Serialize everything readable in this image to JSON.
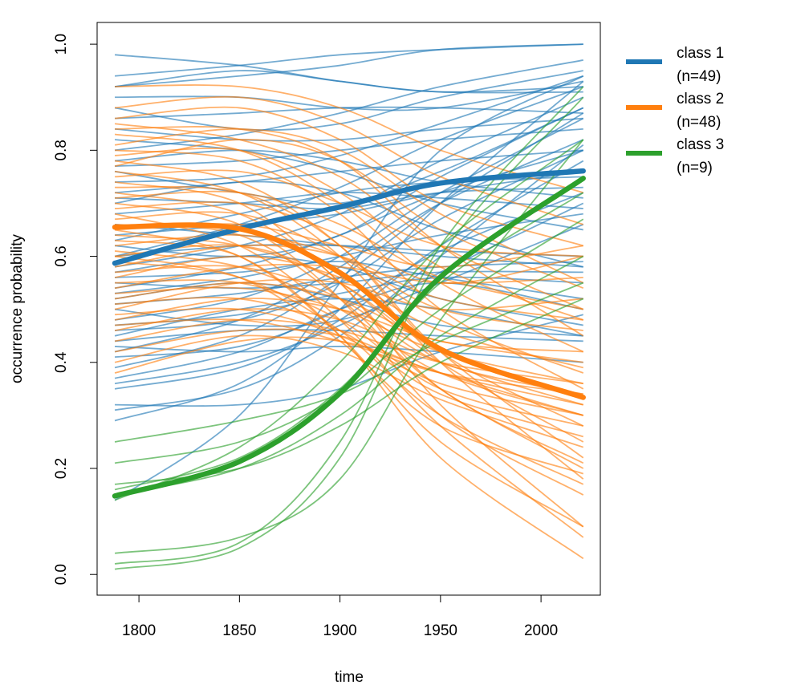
{
  "chart_data": {
    "type": "line",
    "x_label": "time",
    "y_label": "occurrence probability",
    "x": [
      1788,
      1850,
      1900,
      1950,
      2021
    ],
    "xlim": [
      1779.2,
      2029.5
    ],
    "xticks": [
      1800,
      1850,
      1900,
      1950,
      2000
    ],
    "ylim": [
      -0.039,
      1.041
    ],
    "yticks": [
      {
        "value": 0,
        "label": "0.0"
      },
      0.2,
      0.4,
      0.6,
      0.8,
      {
        "value": 1,
        "label": "1.0"
      }
    ],
    "legend": "right",
    "series": [
      {
        "name": "class 1",
        "n_label": "(n=49)",
        "color": "#1f77b4",
        "values": [
          0.587,
          0.652,
          0.693,
          0.738,
          0.761
        ],
        "members": [
          [
            0.98,
            0.96,
            0.93,
            0.91,
            0.91
          ],
          [
            0.94,
            0.96,
            0.98,
            0.99,
            1.0
          ],
          [
            0.92,
            0.94,
            0.96,
            0.99,
            1.0
          ],
          [
            0.92,
            0.95,
            0.93,
            0.91,
            0.92
          ],
          [
            0.88,
            0.84,
            0.85,
            0.9,
            0.95
          ],
          [
            0.9,
            0.9,
            0.88,
            0.88,
            0.93
          ],
          [
            0.84,
            0.82,
            0.82,
            0.84,
            0.86
          ],
          [
            0.8,
            0.83,
            0.87,
            0.92,
            0.97
          ],
          [
            0.78,
            0.8,
            0.78,
            0.74,
            0.71
          ],
          [
            0.76,
            0.72,
            0.7,
            0.76,
            0.88
          ],
          [
            0.74,
            0.75,
            0.79,
            0.85,
            0.94
          ],
          [
            0.72,
            0.74,
            0.76,
            0.78,
            0.8
          ],
          [
            0.71,
            0.7,
            0.69,
            0.72,
            0.73
          ],
          [
            0.68,
            0.7,
            0.72,
            0.71,
            0.69
          ],
          [
            0.66,
            0.64,
            0.62,
            0.6,
            0.58
          ],
          [
            0.64,
            0.66,
            0.68,
            0.72,
            0.76
          ],
          [
            0.62,
            0.6,
            0.64,
            0.75,
            0.88
          ],
          [
            0.6,
            0.62,
            0.62,
            0.61,
            0.6
          ],
          [
            0.58,
            0.62,
            0.68,
            0.78,
            0.9
          ],
          [
            0.56,
            0.57,
            0.59,
            0.56,
            0.52
          ],
          [
            0.55,
            0.54,
            0.55,
            0.57,
            0.57
          ],
          [
            0.54,
            0.58,
            0.64,
            0.72,
            0.8
          ],
          [
            0.52,
            0.55,
            0.52,
            0.47,
            0.45
          ],
          [
            0.51,
            0.53,
            0.56,
            0.58,
            0.59
          ],
          [
            0.5,
            0.47,
            0.48,
            0.55,
            0.66
          ],
          [
            0.48,
            0.52,
            0.6,
            0.72,
            0.86
          ],
          [
            0.47,
            0.49,
            0.53,
            0.56,
            0.55
          ],
          [
            0.46,
            0.48,
            0.55,
            0.67,
            0.8
          ],
          [
            0.44,
            0.46,
            0.46,
            0.45,
            0.44
          ],
          [
            0.43,
            0.42,
            0.43,
            0.42,
            0.4
          ],
          [
            0.42,
            0.48,
            0.58,
            0.7,
            0.82
          ],
          [
            0.41,
            0.43,
            0.5,
            0.61,
            0.72
          ],
          [
            0.39,
            0.45,
            0.56,
            0.7,
            0.87
          ],
          [
            0.37,
            0.42,
            0.5,
            0.55,
            0.5
          ],
          [
            0.36,
            0.4,
            0.47,
            0.57,
            0.7
          ],
          [
            0.35,
            0.39,
            0.48,
            0.62,
            0.78
          ],
          [
            0.32,
            0.32,
            0.35,
            0.42,
            0.49
          ],
          [
            0.31,
            0.35,
            0.45,
            0.6,
            0.81
          ],
          [
            0.29,
            0.36,
            0.5,
            0.7,
            0.93
          ],
          [
            0.14,
            0.3,
            0.55,
            0.8,
            0.94
          ],
          [
            0.6,
            0.66,
            0.73,
            0.82,
            0.92
          ],
          [
            0.7,
            0.74,
            0.72,
            0.65,
            0.58
          ],
          [
            0.82,
            0.8,
            0.76,
            0.7,
            0.65
          ],
          [
            0.57,
            0.6,
            0.58,
            0.52,
            0.47
          ],
          [
            0.53,
            0.56,
            0.6,
            0.64,
            0.68
          ],
          [
            0.45,
            0.5,
            0.52,
            0.5,
            0.45
          ],
          [
            0.63,
            0.68,
            0.72,
            0.74,
            0.75
          ],
          [
            0.77,
            0.78,
            0.8,
            0.82,
            0.84
          ],
          [
            0.86,
            0.87,
            0.88,
            0.88,
            0.87
          ]
        ]
      },
      {
        "name": "class 2",
        "n_label": "(n=48)",
        "color": "#ff7f0e",
        "values": [
          0.655,
          0.652,
          0.569,
          0.425,
          0.334
        ],
        "members": [
          [
            0.92,
            0.92,
            0.88,
            0.8,
            0.72
          ],
          [
            0.88,
            0.9,
            0.85,
            0.75,
            0.66
          ],
          [
            0.85,
            0.82,
            0.75,
            0.62,
            0.5
          ],
          [
            0.84,
            0.84,
            0.78,
            0.62,
            0.45
          ],
          [
            0.83,
            0.8,
            0.7,
            0.55,
            0.42
          ],
          [
            0.81,
            0.84,
            0.8,
            0.68,
            0.55
          ],
          [
            0.8,
            0.78,
            0.68,
            0.5,
            0.35
          ],
          [
            0.79,
            0.8,
            0.72,
            0.58,
            0.48
          ],
          [
            0.78,
            0.74,
            0.62,
            0.42,
            0.28
          ],
          [
            0.77,
            0.82,
            0.78,
            0.65,
            0.54
          ],
          [
            0.76,
            0.72,
            0.6,
            0.4,
            0.18
          ],
          [
            0.75,
            0.76,
            0.7,
            0.62,
            0.6
          ],
          [
            0.74,
            0.7,
            0.55,
            0.35,
            0.21
          ],
          [
            0.73,
            0.72,
            0.62,
            0.42,
            0.22
          ],
          [
            0.72,
            0.68,
            0.55,
            0.32,
            0.09
          ],
          [
            0.71,
            0.72,
            0.66,
            0.56,
            0.5
          ],
          [
            0.7,
            0.66,
            0.52,
            0.3,
            0.15
          ],
          [
            0.69,
            0.7,
            0.64,
            0.55,
            0.6
          ],
          [
            0.68,
            0.62,
            0.48,
            0.28,
            0.07
          ],
          [
            0.67,
            0.68,
            0.6,
            0.48,
            0.38
          ],
          [
            0.66,
            0.64,
            0.52,
            0.35,
            0.2
          ],
          [
            0.65,
            0.66,
            0.62,
            0.58,
            0.62
          ],
          [
            0.64,
            0.62,
            0.55,
            0.42,
            0.33
          ],
          [
            0.63,
            0.6,
            0.45,
            0.22,
            0.03
          ],
          [
            0.62,
            0.64,
            0.6,
            0.5,
            0.46
          ],
          [
            0.61,
            0.58,
            0.5,
            0.38,
            0.3
          ],
          [
            0.6,
            0.62,
            0.55,
            0.4,
            0.25
          ],
          [
            0.59,
            0.56,
            0.46,
            0.3,
            0.17
          ],
          [
            0.58,
            0.62,
            0.6,
            0.52,
            0.48
          ],
          [
            0.57,
            0.58,
            0.52,
            0.4,
            0.34
          ],
          [
            0.56,
            0.6,
            0.56,
            0.46,
            0.39
          ],
          [
            0.55,
            0.55,
            0.48,
            0.35,
            0.28
          ],
          [
            0.54,
            0.58,
            0.58,
            0.55,
            0.56
          ],
          [
            0.53,
            0.54,
            0.5,
            0.42,
            0.36
          ],
          [
            0.52,
            0.55,
            0.52,
            0.44,
            0.42
          ],
          [
            0.51,
            0.52,
            0.46,
            0.34,
            0.26
          ],
          [
            0.5,
            0.55,
            0.55,
            0.5,
            0.52
          ],
          [
            0.49,
            0.5,
            0.45,
            0.36,
            0.3
          ],
          [
            0.48,
            0.52,
            0.5,
            0.44,
            0.4
          ],
          [
            0.47,
            0.48,
            0.44,
            0.38,
            0.34
          ],
          [
            0.46,
            0.5,
            0.48,
            0.4,
            0.32
          ],
          [
            0.44,
            0.48,
            0.46,
            0.4,
            0.36
          ],
          [
            0.42,
            0.46,
            0.45,
            0.38,
            0.32
          ],
          [
            0.4,
            0.45,
            0.42,
            0.33,
            0.24
          ],
          [
            0.38,
            0.44,
            0.44,
            0.38,
            0.3
          ],
          [
            0.86,
            0.88,
            0.82,
            0.7,
            0.62
          ],
          [
            0.65,
            0.6,
            0.45,
            0.25,
            0.09
          ],
          [
            0.6,
            0.56,
            0.44,
            0.28,
            0.19
          ]
        ]
      },
      {
        "name": "class 3",
        "n_label": "(n=9)",
        "color": "#2ca02c",
        "values": [
          0.148,
          0.213,
          0.342,
          0.561,
          0.747
        ],
        "members": [
          [
            0.01,
            0.05,
            0.22,
            0.6,
            0.9
          ],
          [
            0.02,
            0.06,
            0.25,
            0.62,
            0.92
          ],
          [
            0.04,
            0.07,
            0.18,
            0.48,
            0.82
          ],
          [
            0.14,
            0.24,
            0.4,
            0.62,
            0.82
          ],
          [
            0.16,
            0.22,
            0.35,
            0.55,
            0.72
          ],
          [
            0.21,
            0.25,
            0.34,
            0.5,
            0.67
          ],
          [
            0.25,
            0.29,
            0.34,
            0.44,
            0.55
          ],
          [
            0.15,
            0.2,
            0.3,
            0.45,
            0.6
          ],
          [
            0.17,
            0.2,
            0.28,
            0.4,
            0.52
          ]
        ]
      }
    ]
  }
}
